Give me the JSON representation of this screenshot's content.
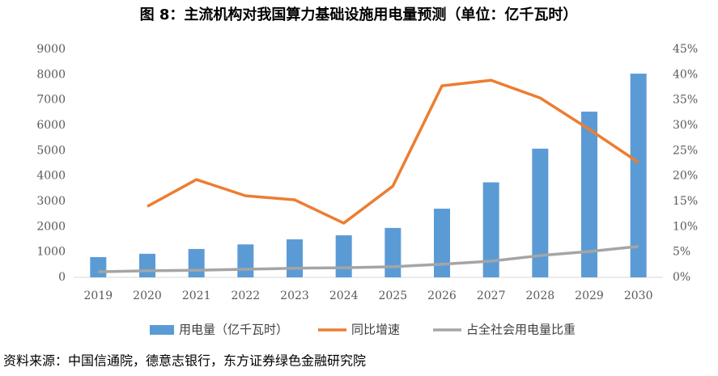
{
  "chart_data": {
    "type": "bar-line",
    "title": "图 8：主流机构对我国算力基础设施用电量预测（单位：亿千瓦时）",
    "source": "资料来源：中国信通院，德意志银行，东方证券绿色金融研究院",
    "categories": [
      "2019",
      "2020",
      "2021",
      "2022",
      "2023",
      "2024",
      "2025",
      "2026",
      "2027",
      "2028",
      "2029",
      "2030"
    ],
    "series": [
      {
        "name": "用电量（亿千瓦时）",
        "type": "bar",
        "color": "#5b9bd5",
        "axis": "y",
        "values": [
          800,
          930,
          1120,
          1300,
          1500,
          1660,
          1950,
          2710,
          3750,
          5080,
          6540,
          8040
        ]
      },
      {
        "name": "同比增速",
        "type": "line",
        "color": "#ed7d31",
        "axis": "y2",
        "values": [
          null,
          14.0,
          19.3,
          16.1,
          15.3,
          10.7,
          18.0,
          37.8,
          38.9,
          35.4,
          29.2,
          22.7
        ]
      },
      {
        "name": "占全社会用电量比重",
        "type": "line",
        "color": "#a5a5a5",
        "axis": "y2",
        "values": [
          1.1,
          1.3,
          1.4,
          1.6,
          1.8,
          1.9,
          2.1,
          2.6,
          3.2,
          4.3,
          5.1,
          6.1
        ]
      }
    ],
    "ylim": [
      0,
      9000
    ],
    "yticks": [
      0,
      1000,
      2000,
      3000,
      4000,
      5000,
      6000,
      7000,
      8000,
      9000
    ],
    "y2lim": [
      0,
      45
    ],
    "y2ticks": [
      {
        "value": 0,
        "label": "0%"
      },
      {
        "value": 5,
        "label": "5%"
      },
      {
        "value": 10,
        "label": "10%"
      },
      {
        "value": 15,
        "label": "15%"
      },
      {
        "value": 20,
        "label": "20%"
      },
      {
        "value": 25,
        "label": "25%"
      },
      {
        "value": 30,
        "label": "30%"
      },
      {
        "value": 35,
        "label": "35%"
      },
      {
        "value": 40,
        "label": "40%"
      },
      {
        "value": 45,
        "label": "45%"
      }
    ],
    "grid": false,
    "legend": "bottom"
  }
}
